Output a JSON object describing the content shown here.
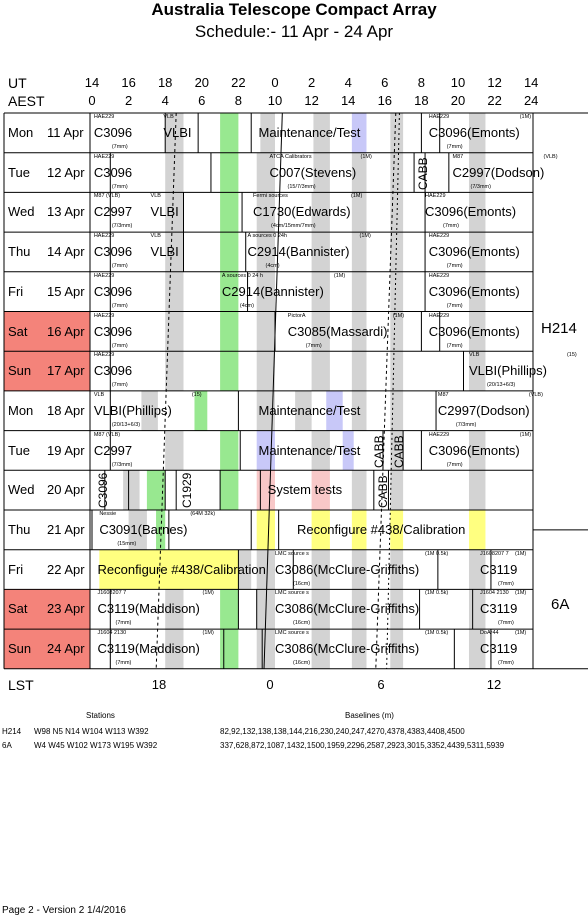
{
  "title": "Australia Telescope Compact Array",
  "subtitle": "Schedule:- 11 Apr - 24 Apr",
  "axis": {
    "ut_label": "UT",
    "aest_label": "AEST",
    "lst_label": "LST",
    "ut_ticks": [
      "14",
      "16",
      "18",
      "20",
      "22",
      "0",
      "2",
      "4",
      "6",
      "8",
      "10",
      "12",
      "14"
    ],
    "aest_ticks": [
      "0",
      "2",
      "4",
      "6",
      "8",
      "10",
      "12",
      "14",
      "16",
      "18",
      "20",
      "22",
      "24"
    ],
    "lst_ticks": [
      "18",
      "0",
      "6",
      "12"
    ]
  },
  "days": [
    {
      "day": "Mon",
      "date": "11 Apr",
      "weekend": false
    },
    {
      "day": "Tue",
      "date": "12 Apr",
      "weekend": false
    },
    {
      "day": "Wed",
      "date": "13 Apr",
      "weekend": false
    },
    {
      "day": "Thu",
      "date": "14 Apr",
      "weekend": false
    },
    {
      "day": "Fri",
      "date": "15 Apr",
      "weekend": false
    },
    {
      "day": "Sat",
      "date": "16 Apr",
      "weekend": true
    },
    {
      "day": "Sun",
      "date": "17 Apr",
      "weekend": true
    },
    {
      "day": "Mon",
      "date": "18 Apr",
      "weekend": false
    },
    {
      "day": "Tue",
      "date": "19 Apr",
      "weekend": false
    },
    {
      "day": "Wed",
      "date": "20 Apr",
      "weekend": false
    },
    {
      "day": "Thu",
      "date": "21 Apr",
      "weekend": false
    },
    {
      "day": "Fri",
      "date": "22 Apr",
      "weekend": false
    },
    {
      "day": "Sat",
      "date": "23 Apr",
      "weekend": true
    },
    {
      "day": "Sun",
      "date": "24 Apr",
      "weekend": true
    }
  ],
  "configs": [
    "H214",
    "6A"
  ],
  "blocks": [
    {
      "text": "C3096",
      "note": "HAE229",
      "sub": "(7mm)"
    },
    {
      "text": "VLBI",
      "note": "VLB"
    },
    {
      "text": "Maintenance/Test"
    },
    {
      "text": "C3096(Emonts)",
      "note": "HAE229",
      "sub": "(7mm)",
      "tag": "(1M)"
    },
    {
      "text": "C3096",
      "note": "HAE229",
      "sub": "(7mm)"
    },
    {
      "text": "C007(Stevens)",
      "note": "ATCA Calibrators",
      "sub": "(15/7/3mm)",
      "tag": "(1M)"
    },
    {
      "text": "CABB"
    },
    {
      "text": "C2997(Dodson)",
      "note": "M87",
      "sub": "(7/3mm)",
      "tag": "(VLB)"
    },
    {
      "text": "C2997",
      "note": "M87 (VLB)",
      "sub": "(7/3mm)"
    },
    {
      "text": "VLBI",
      "note": "VLB"
    },
    {
      "text": "C1730(Edwards)",
      "note": "Fermi sources",
      "sub": "(4cm/15mm/7mm)",
      "tag": "(1M)"
    },
    {
      "text": "C3096(Emonts)",
      "note": "HAE229",
      "sub": "(7mm)"
    },
    {
      "text": "C3096",
      "note": "HAE229",
      "sub": "(7mm)"
    },
    {
      "text": "VLBI",
      "note": "VLB"
    },
    {
      "text": "C2914(Bannister)",
      "note": "A sources 0 24h",
      "sub": "(4cm)",
      "tag": "(1M)"
    },
    {
      "text": "C3096(Emonts)",
      "note": "HAE229",
      "sub": "(7mm)"
    },
    {
      "text": "C3096",
      "note": "HAE229",
      "sub": "(7mm)"
    },
    {
      "text": "C2914(Bannister)",
      "note": "A sources 0 24 h",
      "sub": "(4cm)",
      "tag": "(1M)"
    },
    {
      "text": "C3096(Emonts)",
      "note": "HAE229",
      "sub": "(7mm)"
    },
    {
      "text": "C3096",
      "note": "HAE229",
      "sub": "(7mm)"
    },
    {
      "text": "C3085(Massardi)",
      "note": "PictorA",
      "sub": "(7mm)",
      "tag": "(1M)"
    },
    {
      "text": "C3096(Emonts)",
      "note": "HAE229",
      "sub": "(7mm)"
    },
    {
      "text": "C3096",
      "note": "HAE229",
      "sub": "(7mm)"
    },
    {
      "text": "VLBI(Phillips)",
      "note": "VLB",
      "sub": "(20/13+6/3)",
      "tag": "(15)"
    },
    {
      "text": "VLBI(Phillips)",
      "note": "VLB",
      "sub": "(20/13+6/3)",
      "tag": "(15)"
    },
    {
      "text": "Maintenance/Test"
    },
    {
      "text": "C2997(Dodson)",
      "note": "M87",
      "sub": "(7/3mm)",
      "tag": "(VLB)"
    },
    {
      "text": "C2997",
      "note": "M87 (VLB)",
      "sub": "(7/3mm)"
    },
    {
      "text": "Maintenance/Test"
    },
    {
      "text": "CABB"
    },
    {
      "text": "CABB"
    },
    {
      "text": "C3096(Emonts)",
      "note": "HAE229",
      "sub": "(7mm)",
      "tag": "(1M)"
    },
    {
      "text": "C3096"
    },
    {
      "text": "C1929"
    },
    {
      "text": "System tests"
    },
    {
      "text": "CABB"
    },
    {
      "text": "C3091(Barnes)",
      "note": "Nessie",
      "sub": "(15mm)",
      "tag": "(64M 32k)"
    },
    {
      "text": "Reconfigure #438/Calibration"
    },
    {
      "text": "Reconfigure #438/Calibration"
    },
    {
      "text": "C3086(McClure-Griffiths)",
      "note": "LMC source s",
      "sub": "(16cm)",
      "tag": "(1M 0.5k)"
    },
    {
      "text": "C3119",
      "note": "J1608207 7",
      "sub": "(7mm)",
      "tag": "(1M)"
    },
    {
      "text": "C3119(Maddison)",
      "note": "J1608207 7",
      "sub": "(7mm)",
      "tag": "(1M)"
    },
    {
      "text": "C3086(McClure-Griffiths)",
      "note": "LMC source s",
      "sub": "(16cm)",
      "tag": "(1M 0.5k)"
    },
    {
      "text": "C3119",
      "note": "J1604 2130",
      "sub": "(7mm)",
      "tag": "(1M)"
    },
    {
      "text": "C3119(Maddison)",
      "note": "J1604 2130",
      "sub": "(7mm)",
      "tag": "(1M)"
    },
    {
      "text": "C3086(McClure-Griffiths)",
      "note": "LMC source s",
      "sub": "(16cm)",
      "tag": "(1M 0.5k)"
    },
    {
      "text": "C3119",
      "note": "DoAr44",
      "sub": "(7mm)",
      "tag": "(1M)"
    }
  ],
  "footer": {
    "stations_label": "Stations",
    "baselines_label": "Baselines (m)",
    "rows": [
      {
        "config": "H214",
        "stations": "W98 N5 N14 W104 W113 W392",
        "baselines": "82,92,132,138,138,144,216,230,240,247,4270,4378,4383,4408,4500"
      },
      {
        "config": "6A",
        "stations": "W4 W45 W102 W173 W195 W392",
        "baselines": "337,628,872,1087,1432,1500,1959,2296,2587,2923,3015,3352,4439,5311,5939"
      }
    ],
    "page_info": "Page 2 - Version 2  1/4/2016"
  },
  "colors": {
    "weekend": "#f4837a",
    "gray": "#d3d3d3",
    "green": "#98e890",
    "blue": "#c8c8f8",
    "yellow": "#ffff80",
    "pink": "#f8c8c8",
    "orange": "#f8dca0"
  }
}
